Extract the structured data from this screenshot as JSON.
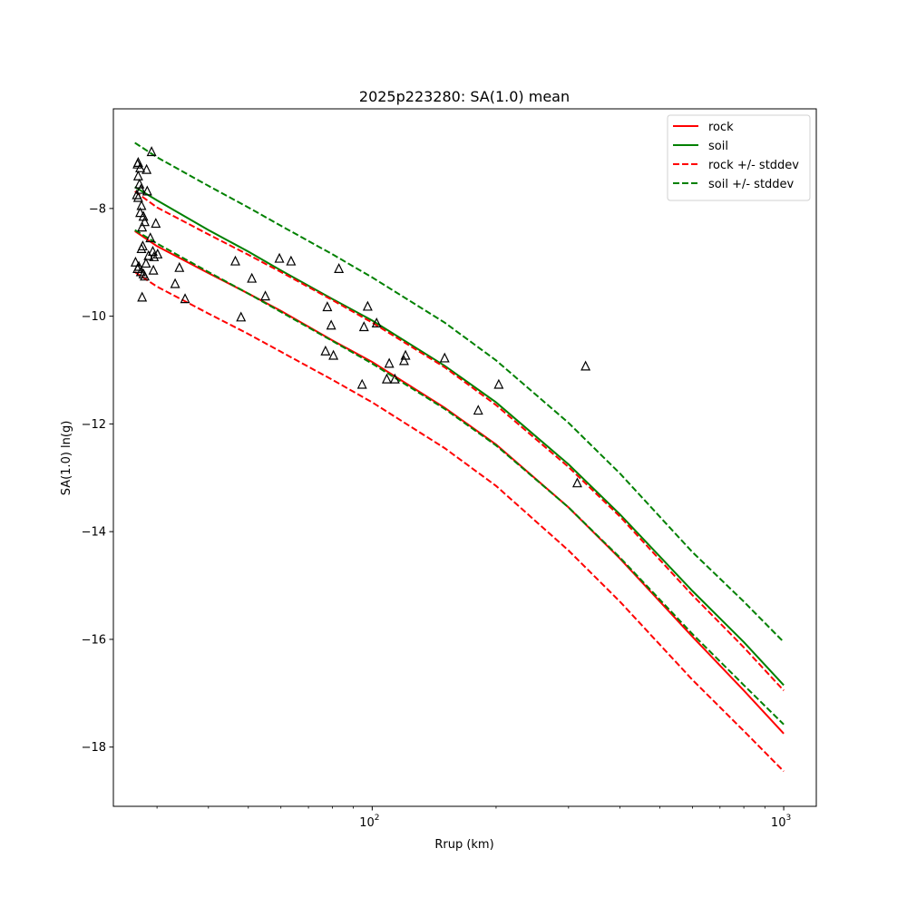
{
  "chart_data": {
    "type": "line",
    "title": "2025p223280: SA(1.0) mean",
    "xlabel": "Rrup (km)",
    "ylabel": "SA(1.0) ln(g)",
    "xscale": "log",
    "xlim": [
      23.5,
      1200
    ],
    "ylim": [
      -19.1,
      -6.15
    ],
    "grid": false,
    "legend_position": "top-right",
    "x_ticks": [
      {
        "value": 100,
        "base": "10",
        "exp": "2"
      },
      {
        "value": 1000,
        "base": "10",
        "exp": "3"
      }
    ],
    "x_minor_ticks": [
      30,
      40,
      50,
      60,
      70,
      80,
      90,
      200,
      300,
      400,
      500,
      600,
      700,
      800,
      900
    ],
    "y_ticks": [
      {
        "value": -8,
        "label": "−8"
      },
      {
        "value": -10,
        "label": "−10"
      },
      {
        "value": -12,
        "label": "−12"
      },
      {
        "value": -14,
        "label": "−14"
      },
      {
        "value": -16,
        "label": "−16"
      },
      {
        "value": -18,
        "label": "−18"
      }
    ],
    "series": [
      {
        "name": "rock",
        "color": "#ff0000",
        "style": "solid",
        "x": [
          26.5,
          30,
          40,
          50,
          60,
          80,
          100,
          150,
          200,
          300,
          400,
          600,
          800,
          1000
        ],
        "y": [
          -8.42,
          -8.7,
          -9.2,
          -9.58,
          -9.9,
          -10.45,
          -10.85,
          -11.7,
          -12.38,
          -13.55,
          -14.5,
          -15.95,
          -16.95,
          -17.75
        ]
      },
      {
        "name": "soil",
        "color": "#008000",
        "style": "solid",
        "x": [
          26.5,
          30,
          40,
          50,
          60,
          80,
          100,
          150,
          200,
          300,
          400,
          600,
          800,
          1000
        ],
        "y": [
          -7.6,
          -7.85,
          -8.4,
          -8.8,
          -9.15,
          -9.68,
          -10.08,
          -10.92,
          -11.6,
          -12.75,
          -13.68,
          -15.1,
          -16.05,
          -16.85
        ]
      },
      {
        "name": "rock +/- stddev",
        "color": "#ff0000",
        "style": "dashed",
        "x": [
          26.5,
          30,
          40,
          50,
          60,
          80,
          100,
          150,
          200,
          300,
          400,
          600,
          800,
          1000
        ],
        "y": [
          -7.68,
          -7.98,
          -8.48,
          -8.86,
          -9.18,
          -9.7,
          -10.12,
          -10.95,
          -11.65,
          -12.8,
          -13.72,
          -15.18,
          -16.15,
          -16.95
        ]
      },
      {
        "name": "",
        "color": "#ff0000",
        "style": "dashed",
        "x": [
          26.5,
          30,
          40,
          50,
          60,
          80,
          100,
          150,
          200,
          300,
          400,
          600,
          800,
          1000
        ],
        "y": [
          -9.18,
          -9.45,
          -9.95,
          -10.33,
          -10.66,
          -11.18,
          -11.6,
          -12.45,
          -13.15,
          -14.35,
          -15.3,
          -16.75,
          -17.7,
          -18.45
        ]
      },
      {
        "name": "soil +/- stddev",
        "color": "#008000",
        "style": "dashed",
        "x": [
          26.5,
          30,
          40,
          50,
          60,
          80,
          100,
          150,
          200,
          300,
          400,
          600,
          800,
          1000
        ],
        "y": [
          -6.78,
          -7.05,
          -7.58,
          -7.98,
          -8.32,
          -8.85,
          -9.28,
          -10.12,
          -10.82,
          -11.98,
          -12.92,
          -14.38,
          -15.3,
          -16.05
        ]
      },
      {
        "name": "",
        "color": "#008000",
        "style": "dashed",
        "x": [
          26.5,
          30,
          40,
          50,
          60,
          80,
          100,
          150,
          200,
          300,
          400,
          600,
          800,
          1000
        ],
        "y": [
          -8.4,
          -8.65,
          -9.18,
          -9.58,
          -9.92,
          -10.46,
          -10.88,
          -11.72,
          -12.4,
          -13.55,
          -14.48,
          -15.9,
          -16.85,
          -17.58
        ]
      }
    ],
    "observations": {
      "marker": "triangle",
      "x": [
        26.9,
        27.0,
        27.3,
        27.0,
        27.2,
        27.4,
        26.8,
        27.0,
        27.5,
        27.3,
        27.8,
        28.0,
        28.4,
        29.1,
        29.8,
        27.6,
        28.3,
        28.9,
        29.3,
        30.1,
        27.7,
        28.6,
        29.5,
        27.5,
        28.2,
        26.6,
        27.1,
        26.9,
        27.4,
        27.8,
        28.0,
        29.4,
        27.6,
        33.2,
        34.0,
        35.1,
        46.5,
        48.0,
        51.0,
        55.0,
        59.5,
        63.5,
        77.0,
        77.8,
        79.5,
        80.5,
        83.0,
        94.5,
        95.5,
        97.5,
        102.5,
        108.5,
        110.0,
        113.5,
        119.5,
        120.5,
        150.0,
        181.0,
        203.0,
        315.0,
        330.0
      ],
      "y": [
        -7.18,
        -7.15,
        -7.25,
        -7.4,
        -7.55,
        -7.65,
        -7.75,
        -7.8,
        -7.95,
        -8.08,
        -8.15,
        -8.25,
        -7.68,
        -6.95,
        -8.28,
        -8.35,
        -7.28,
        -8.55,
        -8.8,
        -8.85,
        -8.7,
        -8.88,
        -8.9,
        -8.75,
        -9.02,
        -9.0,
        -9.08,
        -9.12,
        -9.18,
        -9.22,
        -9.26,
        -9.15,
        -9.65,
        -9.4,
        -9.1,
        -9.68,
        -8.98,
        -10.02,
        -9.3,
        -9.63,
        -8.93,
        -8.98,
        -10.65,
        -9.83,
        -10.17,
        -10.73,
        -9.12,
        -11.27,
        -10.2,
        -9.82,
        -10.13,
        -11.17,
        -10.88,
        -11.17,
        -10.83,
        -10.73,
        -10.78,
        -11.75,
        -11.27,
        -13.1,
        -10.93
      ]
    }
  }
}
